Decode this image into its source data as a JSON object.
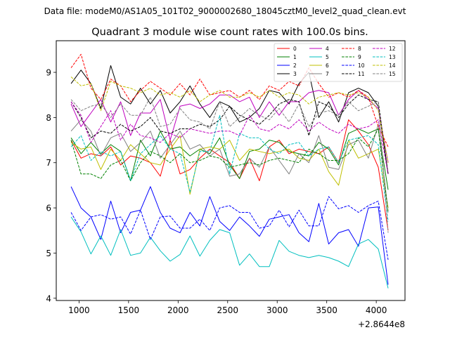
{
  "figure": {
    "suptitle": "Data file: modeM0/AS1A05_101T02_9000002680_18045cztM0_level2_quad_clean.evt"
  },
  "chart_data": {
    "type": "line",
    "title": "Quadrant 3 module wise count rates with 100.0s bins.",
    "xlabel": "",
    "ylabel": "",
    "x_offset_label": "+2.8644e8",
    "xlim": [
      770,
      4290
    ],
    "ylim": [
      3.95,
      9.7
    ],
    "xticks": [
      1000,
      1500,
      2000,
      2500,
      3000,
      3500,
      4000
    ],
    "yticks": [
      4,
      5,
      6,
      7,
      8,
      9
    ],
    "legend_location": "top-right",
    "legend_columns": 4,
    "x": [
      920,
      1020,
      1120,
      1220,
      1320,
      1420,
      1520,
      1620,
      1720,
      1820,
      1920,
      2020,
      2120,
      2220,
      2320,
      2420,
      2520,
      2620,
      2720,
      2820,
      2920,
      3020,
      3120,
      3220,
      3320,
      3420,
      3520,
      3620,
      3720,
      3820,
      3920,
      4020,
      4120
    ],
    "series": [
      {
        "name": "0",
        "color": "#ff0000",
        "dash": "solid",
        "values": [
          7.5,
          7.1,
          7.2,
          7.15,
          7.35,
          6.95,
          7.15,
          7.1,
          7.0,
          6.7,
          7.5,
          6.75,
          6.85,
          7.1,
          7.3,
          7.15,
          7.0,
          6.65,
          7.1,
          6.6,
          7.35,
          7.5,
          7.2,
          7.3,
          7.25,
          7.2,
          7.35,
          7.0,
          7.95,
          7.7,
          7.4,
          6.9,
          5.5
        ]
      },
      {
        "name": "1",
        "color": "#008000",
        "dash": "solid",
        "values": [
          7.55,
          7.2,
          7.45,
          7.2,
          7.4,
          7.25,
          6.6,
          7.5,
          7.15,
          7.7,
          7.3,
          7.35,
          7.15,
          7.3,
          7.2,
          7.55,
          6.95,
          6.65,
          7.25,
          7.3,
          7.5,
          7.45,
          7.25,
          7.2,
          7.15,
          7.45,
          7.3,
          6.95,
          7.65,
          7.75,
          7.65,
          7.75,
          6.4
        ]
      },
      {
        "name": "2",
        "color": "#0000ff",
        "dash": "solid",
        "values": [
          6.47,
          6.0,
          5.8,
          5.3,
          6.15,
          5.45,
          5.9,
          5.95,
          6.47,
          5.9,
          5.55,
          5.45,
          5.9,
          5.6,
          6.25,
          5.7,
          5.5,
          5.8,
          5.6,
          5.37,
          5.75,
          5.8,
          5.85,
          5.45,
          5.25,
          6.1,
          5.2,
          5.45,
          5.52,
          5.15,
          6.0,
          6.02,
          4.3
        ]
      },
      {
        "name": "3",
        "color": "#000000",
        "dash": "solid",
        "values": [
          8.75,
          9.05,
          8.75,
          8.2,
          9.15,
          8.45,
          8.3,
          8.65,
          8.3,
          8.6,
          8.1,
          8.35,
          8.7,
          8.3,
          8.0,
          8.35,
          8.25,
          7.9,
          8.0,
          8.2,
          8.6,
          8.55,
          8.3,
          8.75,
          9.0,
          8.0,
          8.35,
          7.9,
          8.55,
          8.65,
          8.55,
          8.25,
          6.75
        ]
      },
      {
        "name": "4",
        "color": "#bf00bf",
        "dash": "solid",
        "values": [
          8.3,
          7.8,
          8.1,
          8.4,
          7.9,
          8.35,
          7.6,
          8.1,
          8.1,
          8.4,
          7.5,
          8.25,
          8.3,
          8.2,
          8.3,
          8.5,
          8.5,
          8.35,
          8.45,
          8.0,
          8.35,
          8.05,
          8.35,
          8.35,
          8.55,
          8.6,
          8.55,
          8.05,
          8.4,
          8.6,
          8.4,
          8.2,
          7.0
        ]
      },
      {
        "name": "5",
        "color": "#00bfbf",
        "dash": "solid",
        "values": [
          5.8,
          5.47,
          4.98,
          5.38,
          4.95,
          5.52,
          4.95,
          5.0,
          5.35,
          5.05,
          4.82,
          4.97,
          5.38,
          4.93,
          5.28,
          5.52,
          5.45,
          4.73,
          4.98,
          4.7,
          4.7,
          5.28,
          5.04,
          4.95,
          4.9,
          4.95,
          4.9,
          4.82,
          4.7,
          5.2,
          5.3,
          5.09,
          4.22
        ]
      },
      {
        "name": "6",
        "color": "#bfbf00",
        "dash": "solid",
        "values": [
          7.45,
          7.3,
          7.35,
          6.85,
          7.3,
          7.05,
          7.4,
          7.2,
          7.0,
          6.95,
          7.3,
          7.6,
          6.3,
          7.3,
          7.35,
          7.3,
          7.5,
          7.05,
          7.3,
          7.25,
          7.2,
          7.25,
          7.3,
          7.1,
          7.05,
          7.3,
          6.8,
          6.5,
          7.5,
          7.1,
          7.2,
          7.3,
          6.0
        ]
      },
      {
        "name": "7",
        "color": "#808080",
        "dash": "solid",
        "values": [
          7.7,
          7.95,
          7.7,
          7.15,
          7.55,
          7.65,
          7.25,
          7.45,
          7.7,
          7.1,
          7.4,
          7.7,
          7.3,
          7.4,
          7.15,
          7.3,
          6.7,
          6.75,
          7.1,
          6.9,
          7.35,
          7.05,
          6.75,
          7.2,
          7.0,
          7.6,
          6.9,
          6.85,
          7.4,
          7.5,
          7.1,
          7.85,
          5.9
        ]
      },
      {
        "name": "8",
        "color": "#ff0000",
        "dash": "dashed",
        "values": [
          9.1,
          9.4,
          8.65,
          8.4,
          8.85,
          8.7,
          8.35,
          8.6,
          8.8,
          8.65,
          8.5,
          8.75,
          8.5,
          8.85,
          8.5,
          8.55,
          8.6,
          8.45,
          8.6,
          8.4,
          8.7,
          8.6,
          8.8,
          8.7,
          9.1,
          8.75,
          8.45,
          8.55,
          8.45,
          8.6,
          8.45,
          7.8,
          7.35
        ]
      },
      {
        "name": "9",
        "color": "#008000",
        "dash": "dashed",
        "values": [
          7.5,
          6.75,
          6.75,
          6.65,
          6.95,
          7.05,
          6.6,
          7.0,
          7.25,
          7.15,
          7.0,
          7.2,
          7.0,
          7.05,
          7.15,
          7.1,
          6.9,
          6.95,
          7.0,
          6.95,
          7.05,
          7.1,
          7.05,
          7.0,
          7.3,
          7.2,
          7.05,
          7.05,
          7.2,
          7.55,
          7.35,
          7.75,
          5.9
        ]
      },
      {
        "name": "10",
        "color": "#0000ff",
        "dash": "dashed",
        "values": [
          5.9,
          5.5,
          5.8,
          5.85,
          5.75,
          5.8,
          5.42,
          5.95,
          5.3,
          5.8,
          5.82,
          5.55,
          5.55,
          5.75,
          5.5,
          6.0,
          6.05,
          5.9,
          5.9,
          5.55,
          5.6,
          5.95,
          5.58,
          5.95,
          5.6,
          5.6,
          6.25,
          5.98,
          6.05,
          5.9,
          6.05,
          6.15,
          4.85
        ]
      },
      {
        "name": "11",
        "color": "#000000",
        "dash": "dashed",
        "values": [
          8.35,
          8.0,
          7.55,
          7.7,
          7.65,
          7.85,
          7.7,
          7.8,
          8.0,
          7.7,
          7.65,
          7.75,
          7.75,
          7.85,
          7.8,
          7.95,
          8.25,
          8.05,
          7.95,
          7.85,
          8.05,
          8.3,
          8.4,
          8.35,
          7.6,
          8.35,
          8.25,
          8.0,
          8.3,
          8.5,
          8.4,
          8.35,
          6.75
        ]
      },
      {
        "name": "12",
        "color": "#bf00bf",
        "dash": "dashed",
        "values": [
          8.35,
          8.05,
          7.45,
          7.8,
          8.15,
          7.5,
          7.85,
          7.6,
          7.55,
          7.45,
          7.65,
          7.55,
          7.75,
          7.7,
          7.65,
          7.7,
          7.7,
          7.6,
          8.05,
          7.75,
          7.7,
          7.85,
          7.75,
          7.95,
          7.7,
          7.9,
          7.75,
          7.65,
          7.85,
          7.75,
          7.8,
          7.95,
          6.75
        ]
      },
      {
        "name": "13",
        "color": "#00bfbf",
        "dash": "dashed",
        "values": [
          7.35,
          7.6,
          7.05,
          7.25,
          7.15,
          7.25,
          6.6,
          7.2,
          7.4,
          7.6,
          7.3,
          7.2,
          6.35,
          7.25,
          7.25,
          8.05,
          6.75,
          7.65,
          7.55,
          7.55,
          7.3,
          7.2,
          7.4,
          7.45,
          7.15,
          7.3,
          7.35,
          7.0,
          7.5,
          7.55,
          7.6,
          7.4,
          5.7
        ]
      },
      {
        "name": "14",
        "color": "#bfbf00",
        "dash": "dashed",
        "values": [
          8.9,
          8.7,
          8.75,
          8.15,
          8.8,
          8.7,
          8.65,
          8.55,
          8.65,
          8.5,
          8.55,
          8.45,
          8.6,
          8.35,
          8.5,
          8.6,
          8.45,
          8.45,
          8.55,
          8.45,
          8.6,
          8.45,
          8.55,
          8.5,
          8.3,
          8.45,
          8.5,
          8.55,
          8.5,
          8.55,
          8.45,
          8.15,
          7.0
        ]
      },
      {
        "name": "15",
        "color": "#808080",
        "dash": "dashed",
        "values": [
          8.4,
          8.15,
          8.25,
          8.3,
          8.0,
          8.3,
          8.05,
          8.05,
          8.45,
          7.8,
          7.85,
          8.2,
          7.95,
          7.9,
          7.75,
          8.35,
          7.8,
          8.0,
          8.2,
          8.05,
          7.95,
          8.2,
          7.9,
          8.3,
          7.8,
          8.1,
          8.15,
          8.05,
          8.35,
          8.15,
          8.25,
          8.35,
          5.45
        ]
      }
    ]
  }
}
